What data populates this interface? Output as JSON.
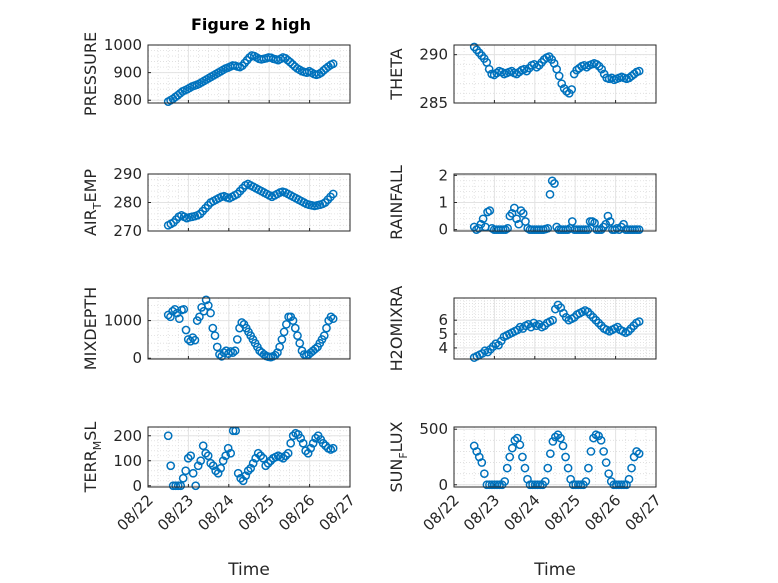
{
  "figure": {
    "title": "Figure 2 high",
    "marker_color": "#0072bd"
  },
  "chart_data": [
    {
      "type": "scatter",
      "id": "pressure",
      "ylabel": "PRESSURE",
      "ylim": [
        790,
        1000
      ],
      "yticks": [
        "800",
        "900",
        "1000"
      ],
      "xlim": [
        "08/22",
        "08/27"
      ],
      "xticks": [],
      "title": "Figure 2 high",
      "grid": true,
      "x_start": "08/22 12:00",
      "x_end": "08/26 14:00",
      "values": [
        795,
        800,
        805,
        812,
        818,
        825,
        832,
        836,
        840,
        845,
        850,
        853,
        856,
        860,
        865,
        870,
        875,
        880,
        885,
        890,
        895,
        900,
        905,
        910,
        915,
        918,
        922,
        926,
        925,
        922,
        920,
        925,
        935,
        945,
        955,
        962,
        960,
        955,
        950,
        948,
        950,
        952,
        955,
        954,
        950,
        948,
        945,
        950,
        955,
        952,
        945,
        938,
        930,
        922,
        915,
        910,
        905,
        902,
        900,
        905,
        900,
        895,
        892,
        895,
        900,
        908,
        915,
        922,
        928,
        932
      ]
    },
    {
      "type": "scatter",
      "id": "theta",
      "ylabel": "THETA",
      "ylim": [
        285,
        291
      ],
      "yticks": [
        "285",
        "290"
      ],
      "xlim": [
        "08/22",
        "08/27"
      ],
      "xticks": [],
      "grid": true,
      "x_start": "08/22 12:00",
      "x_end": "08/26 14:00",
      "values": [
        290.8,
        290.5,
        290.2,
        289.9,
        289.6,
        289.2,
        288.5,
        288.0,
        287.9,
        288.1,
        288.3,
        288.2,
        288.0,
        288.1,
        288.2,
        288.3,
        288.1,
        288.0,
        288.2,
        288.4,
        288.5,
        288.3,
        288.6,
        288.9,
        289.0,
        288.7,
        288.9,
        289.2,
        289.5,
        289.7,
        289.8,
        289.5,
        289.1,
        288.5,
        287.8,
        287.0,
        286.5,
        286.2,
        286.0,
        286.4,
        288.0,
        288.4,
        288.6,
        288.8,
        288.9,
        288.7,
        288.9,
        289.0,
        289.1,
        289.0,
        288.8,
        288.5,
        288.0,
        287.6,
        287.5,
        287.6,
        287.4,
        287.5,
        287.6,
        287.7,
        287.6,
        287.5,
        287.6,
        287.8,
        288.0,
        288.2,
        288.3
      ]
    },
    {
      "type": "scatter",
      "id": "air_temp",
      "ylabel": "AIR",
      "ylabel_sub": "T",
      "ylabel_rest": "EMP",
      "ylim": [
        270,
        290
      ],
      "yticks": [
        "270",
        "280",
        "290"
      ],
      "xlim": [
        "08/22",
        "08/27"
      ],
      "xticks": [],
      "grid": true,
      "x_start": "08/22 12:00",
      "x_end": "08/26 14:00",
      "values": [
        272,
        272.5,
        273,
        274,
        275,
        275.5,
        275,
        274.5,
        274.8,
        275,
        275.2,
        275.5,
        276,
        277,
        278,
        279,
        280,
        280.5,
        281,
        281.5,
        282,
        282.2,
        281.8,
        281.5,
        282,
        282.5,
        283,
        284,
        285,
        286,
        286.5,
        286,
        285.5,
        285,
        284.5,
        284,
        283.5,
        283,
        282.5,
        282,
        282.5,
        283,
        283.5,
        283.8,
        283.5,
        283,
        282.5,
        282,
        281.5,
        281,
        280.5,
        280,
        279.5,
        279.2,
        279,
        278.8,
        279,
        279.2,
        279.5,
        280,
        281,
        282,
        283
      ]
    },
    {
      "type": "scatter",
      "id": "rainfall",
      "ylabel": "RAINFALL",
      "ylim": [
        -0.05,
        2.05
      ],
      "yticks": [
        "0",
        "1",
        "2"
      ],
      "xlim": [
        "08/22",
        "08/27"
      ],
      "xticks": [],
      "grid": true,
      "x_start": "08/22 12:00",
      "x_end": "08/26 14:00",
      "values": [
        0.1,
        0,
        0.05,
        0.2,
        0.4,
        0.1,
        0.65,
        0.7,
        0.05,
        0,
        0,
        0,
        0,
        0,
        0,
        0.05,
        0.5,
        0.6,
        0.8,
        0.4,
        0.2,
        0.7,
        0.6,
        0.3,
        0.05,
        0,
        0,
        0,
        0,
        0,
        0,
        0,
        0.02,
        0.05,
        1.3,
        1.8,
        1.7,
        0.1,
        0,
        0,
        0,
        0,
        0,
        0.05,
        0.3,
        0,
        0,
        0,
        0,
        0,
        0,
        0,
        0.3,
        0.3,
        0.25,
        0,
        0,
        0,
        0.1,
        0.2,
        0.5,
        0.3,
        0,
        0,
        0.05,
        0,
        0.1,
        0.2,
        0,
        0,
        0,
        0,
        0,
        0,
        0
      ]
    },
    {
      "type": "scatter",
      "id": "mixdepth",
      "ylabel": "MIXDEPTH",
      "ylim": [
        -20,
        1600
      ],
      "yticks": [
        "0",
        "1000"
      ],
      "xlim": [
        "08/22",
        "08/27"
      ],
      "xticks": [],
      "grid": true,
      "x_start": "08/22 12:00",
      "x_end": "08/26 14:00",
      "values": [
        1150,
        1100,
        1250,
        1300,
        1200,
        1050,
        1280,
        1300,
        750,
        500,
        450,
        550,
        480,
        1000,
        1100,
        1350,
        1250,
        1550,
        1400,
        1200,
        800,
        600,
        300,
        100,
        50,
        150,
        200,
        120,
        180,
        150,
        200,
        500,
        800,
        950,
        900,
        800,
        700,
        600,
        500,
        400,
        300,
        200,
        150,
        100,
        60,
        40,
        30,
        50,
        80,
        150,
        300,
        500,
        700,
        900,
        1100,
        1100,
        1000,
        800,
        600,
        400,
        200,
        100,
        80,
        100,
        150,
        200,
        250,
        300,
        400,
        500,
        600,
        800,
        1000,
        1100,
        1050
      ]
    },
    {
      "type": "scatter",
      "id": "h2omixra",
      "ylabel": "H2OMIXRA",
      "ylim": [
        3.2,
        7.6
      ],
      "yticks": [
        "4",
        "5",
        "6"
      ],
      "xlim": [
        "08/22",
        "08/27"
      ],
      "xticks": [],
      "grid": true,
      "x_start": "08/22 12:00",
      "x_end": "08/26 14:00",
      "values": [
        3.3,
        3.4,
        3.5,
        3.6,
        3.8,
        3.7,
        3.9,
        4.1,
        4.3,
        4.2,
        4.5,
        4.8,
        4.9,
        5.0,
        5.1,
        5.2,
        5.3,
        5.5,
        5.4,
        5.6,
        5.7,
        5.5,
        5.8,
        5.6,
        5.7,
        5.5,
        5.6,
        5.8,
        5.9,
        6.0,
        6.8,
        7.1,
        6.9,
        6.5,
        6.2,
        6.0,
        6.1,
        6.2,
        6.4,
        6.5,
        6.6,
        6.7,
        6.6,
        6.4,
        6.2,
        6.0,
        5.8,
        5.6,
        5.4,
        5.3,
        5.2,
        5.3,
        5.4,
        5.5,
        5.3,
        5.2,
        5.1,
        5.2,
        5.4,
        5.6,
        5.8,
        5.9
      ]
    },
    {
      "type": "scatter",
      "id": "terr_msl",
      "ylabel": "TERR",
      "ylabel_sub": "M",
      "ylabel_rest": "SL",
      "ylim": [
        -5,
        235
      ],
      "yticks": [
        "0",
        "100",
        "200"
      ],
      "xlim": [
        "08/22",
        "08/27"
      ],
      "xticks": [
        "08/22",
        "08/23",
        "08/24",
        "08/25",
        "08/26",
        "08/27"
      ],
      "xlabel": "Time",
      "grid": true,
      "x_start": "08/22 12:00",
      "x_end": "08/26 14:00",
      "values": [
        200,
        80,
        0,
        0,
        0,
        0,
        30,
        60,
        110,
        120,
        50,
        0,
        80,
        100,
        160,
        130,
        120,
        90,
        80,
        60,
        50,
        70,
        100,
        120,
        150,
        130,
        220,
        220,
        50,
        30,
        20,
        40,
        60,
        70,
        90,
        110,
        130,
        120,
        110,
        80,
        90,
        100,
        110,
        115,
        120,
        115,
        110,
        120,
        130,
        170,
        200,
        210,
        205,
        190,
        170,
        140,
        130,
        150,
        170,
        190,
        200,
        185,
        170,
        160,
        150,
        145,
        150
      ]
    },
    {
      "type": "scatter",
      "id": "sun_flux",
      "ylabel": "SUN",
      "ylabel_sub": "F",
      "ylabel_rest": "LUX",
      "ylim": [
        -20,
        520
      ],
      "yticks": [
        "0",
        "500"
      ],
      "xlim": [
        "08/22",
        "08/27"
      ],
      "xticks": [
        "08/22",
        "08/23",
        "08/24",
        "08/25",
        "08/26",
        "08/27"
      ],
      "xlabel": "Time",
      "grid": true,
      "x_start": "08/22 12:00",
      "x_end": "08/26 14:00",
      "values": [
        350,
        300,
        250,
        200,
        100,
        0,
        0,
        0,
        0,
        0,
        0,
        0,
        30,
        150,
        250,
        330,
        400,
        420,
        360,
        250,
        150,
        50,
        0,
        0,
        0,
        0,
        0,
        0,
        30,
        150,
        280,
        390,
        430,
        450,
        420,
        350,
        250,
        150,
        50,
        0,
        0,
        0,
        0,
        0,
        30,
        150,
        300,
        420,
        450,
        440,
        400,
        300,
        200,
        100,
        30,
        0,
        0,
        0,
        0,
        0,
        0,
        50,
        150,
        250,
        300,
        280
      ]
    }
  ]
}
